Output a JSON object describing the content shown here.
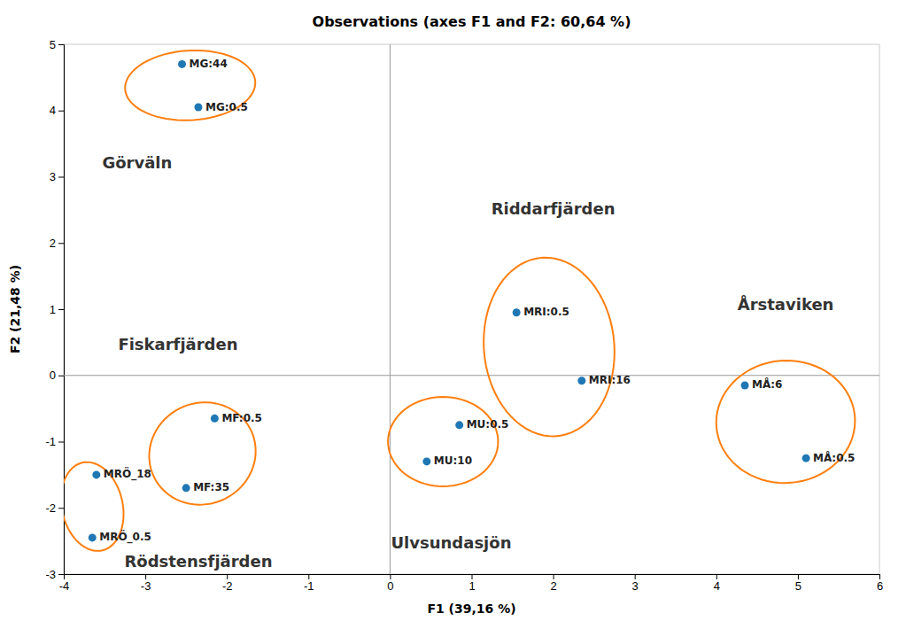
{
  "chart_data": {
    "type": "scatter",
    "title": "Observations (axes F1 and F2: 60,64 %)",
    "xlabel": "F1 (39,16 %)",
    "ylabel": "F2 (21,48 %)",
    "xlim": [
      -4,
      6
    ],
    "ylim": [
      -3,
      5
    ],
    "xticks": [
      -4,
      -3,
      -2,
      -1,
      0,
      1,
      2,
      3,
      4,
      5,
      6
    ],
    "yticks": [
      -3,
      -2,
      -1,
      0,
      1,
      2,
      3,
      4,
      5
    ],
    "reference_lines": {
      "x": [
        0
      ],
      "y": [
        0
      ]
    },
    "series": [
      {
        "x": [
          -2.55,
          -2.35,
          -3.6,
          -3.65,
          -2.15,
          -2.5,
          1.55,
          2.35,
          0.85,
          0.45,
          4.35,
          5.1
        ],
        "values": [
          4.7,
          4.05,
          -1.5,
          -2.45,
          -0.65,
          -1.7,
          0.95,
          -0.08,
          -0.75,
          -1.3,
          -0.15,
          -1.25
        ],
        "labels": [
          "MG:44",
          "MG:0.5",
          "MRÖ_18",
          "MRÖ_0.5",
          "MF:0.5",
          "MF:35",
          "MRI:0.5",
          "MRI:16",
          "MU:0.5",
          "MU:10",
          "MÅ:6",
          "MÅ:0.5"
        ]
      }
    ],
    "ellipses": [
      {
        "cx": -2.45,
        "cy": 4.38,
        "width": 1.6,
        "height": 1.05,
        "angle": 5
      },
      {
        "cx": -3.65,
        "cy": -1.98,
        "width": 0.75,
        "height": 1.35,
        "angle": 8
      },
      {
        "cx": -2.3,
        "cy": -1.18,
        "width": 1.3,
        "height": 1.55,
        "angle": -8
      },
      {
        "cx": 1.95,
        "cy": 0.43,
        "width": 1.6,
        "height": 2.7,
        "angle": 3
      },
      {
        "cx": 0.65,
        "cy": -1.0,
        "width": 1.35,
        "height": 1.35,
        "angle": 0
      },
      {
        "cx": 4.85,
        "cy": -0.7,
        "width": 1.7,
        "height": 1.85,
        "angle": -5
      }
    ],
    "annotations": [
      {
        "text": "Görväln",
        "x": -3.1,
        "y": 3.2
      },
      {
        "text": "Fiskarfjärden",
        "x": -2.6,
        "y": 0.45
      },
      {
        "text": "Rödstensfjärden",
        "x": -2.35,
        "y": -2.82
      },
      {
        "text": "Riddarfjärden",
        "x": 2.0,
        "y": 2.5
      },
      {
        "text": "Ulvsundasjön",
        "x": 0.75,
        "y": -2.55
      },
      {
        "text": "Årstaviken",
        "x": 4.85,
        "y": 1.05
      }
    ]
  }
}
